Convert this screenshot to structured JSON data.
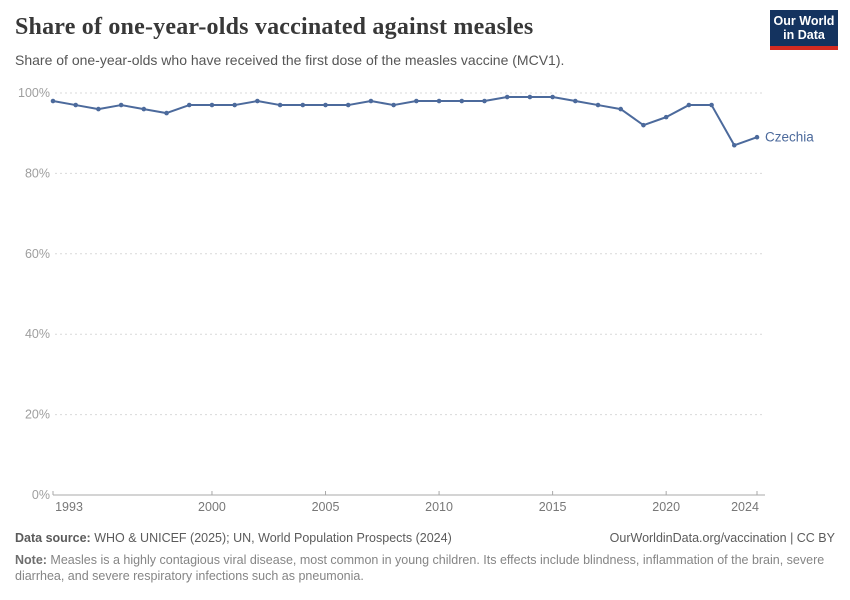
{
  "header": {
    "title": "Share of one-year-olds vaccinated against measles",
    "subtitle": "Share of one-year-olds who have received the first dose of the measles vaccine (MCV1).",
    "logo_line1": "Our World",
    "logo_line2": "in Data"
  },
  "chart_data": {
    "type": "line",
    "title": "Share of one-year-olds vaccinated against measles",
    "xlabel": "",
    "ylabel": "",
    "ylim": [
      0,
      100
    ],
    "yticks": [
      0,
      20,
      40,
      60,
      80,
      100
    ],
    "ytick_labels": [
      "0%",
      "20%",
      "40%",
      "60%",
      "80%",
      "100%"
    ],
    "xticks": [
      1993,
      2000,
      2005,
      2010,
      2015,
      2020,
      2024
    ],
    "xlim": [
      1993,
      2024
    ],
    "grid": "horizontal-dashed",
    "legend_position": "end-of-line",
    "series": [
      {
        "name": "Czechia",
        "color": "#4c6a9c",
        "x": [
          1993,
          1994,
          1995,
          1996,
          1997,
          1998,
          1999,
          2000,
          2001,
          2002,
          2003,
          2004,
          2005,
          2006,
          2007,
          2008,
          2009,
          2010,
          2011,
          2012,
          2013,
          2014,
          2015,
          2016,
          2017,
          2018,
          2019,
          2020,
          2021,
          2022,
          2023,
          2024
        ],
        "values": [
          98,
          97,
          96,
          97,
          96,
          95,
          97,
          97,
          97,
          98,
          97,
          97,
          97,
          97,
          98,
          97,
          98,
          98,
          98,
          98,
          99,
          99,
          99,
          98,
          97,
          96,
          92,
          94,
          97,
          97,
          87,
          89
        ]
      }
    ]
  },
  "footer": {
    "datasource_label": "Data source:",
    "datasource_text": " WHO & UNICEF (2025); UN, World Population Prospects (2024)",
    "link_text": "OurWorldinData.org/vaccination | CC BY",
    "note_label": "Note:",
    "note_text": " Measles is a highly contagious viral disease, most common in young children. Its effects include blindness, inflammation of the brain, severe diarrhea, and severe respiratory infections such as pneumonia."
  },
  "colors": {
    "line": "#4c6a9c",
    "series_label": "#4c6a9c",
    "grid": "#d9d9d9",
    "axis": "#a8a8a8",
    "ytick_text": "#9e9e9e",
    "xtick_text": "#787878",
    "logo_bg": "#14335f",
    "logo_stripe": "#d42b21",
    "title_text": "#383838",
    "subtitle_text": "#565656"
  }
}
